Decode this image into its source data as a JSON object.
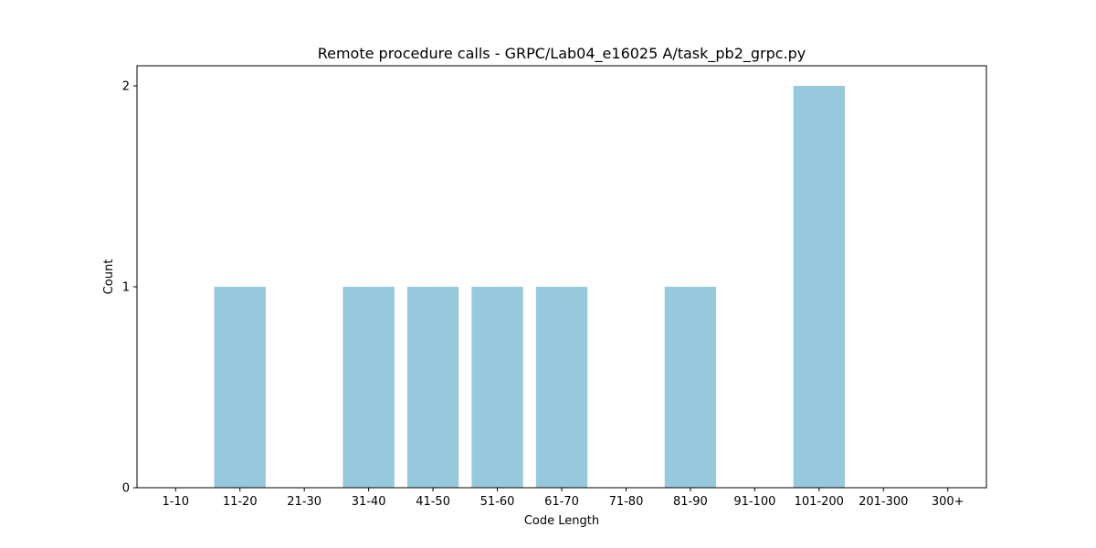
{
  "chart_data": {
    "type": "bar",
    "title": "Remote procedure calls - GRPC/Lab04_e16025 A/task_pb2_grpc.py",
    "xlabel": "Code Length",
    "ylabel": "Count",
    "categories": [
      "1-10",
      "11-20",
      "21-30",
      "31-40",
      "41-50",
      "51-60",
      "61-70",
      "71-80",
      "81-90",
      "91-100",
      "101-200",
      "201-300",
      "300+"
    ],
    "values": [
      0,
      1,
      0,
      1,
      1,
      1,
      1,
      0,
      1,
      0,
      2,
      0,
      0
    ],
    "ylim": [
      0,
      2.1
    ],
    "yticks": [
      0,
      1,
      2
    ],
    "bar_color": "#96c9dc",
    "grid": false,
    "legend": "none"
  }
}
